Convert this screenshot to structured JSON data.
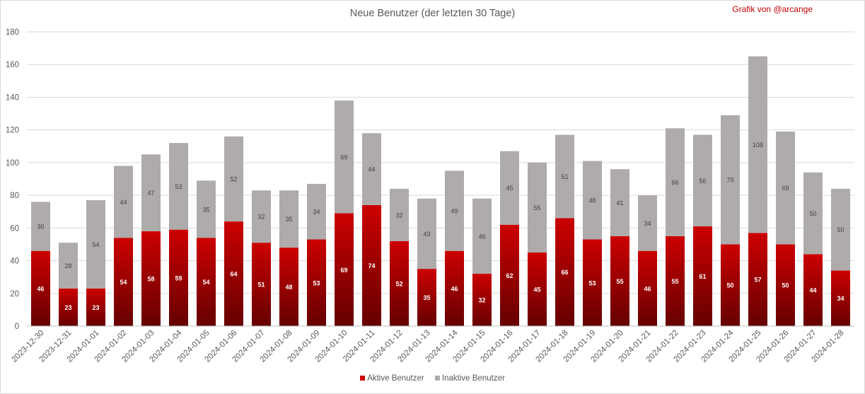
{
  "title": "Neue Benutzer (der letzten 30 Tage)",
  "credit": "Grafik von @arcange",
  "colors": {
    "active_top": "#cc0000",
    "active_bottom": "#650000",
    "inactive": "#afabab",
    "grid": "#d9d9d9",
    "text": "#595959",
    "credit": "#c00000"
  },
  "chart_data": {
    "type": "bar",
    "stacked": true,
    "title": "Neue Benutzer (der letzten 30 Tage)",
    "xlabel": "",
    "ylabel": "",
    "ylim": [
      0,
      180
    ],
    "yticks": [
      0,
      20,
      40,
      60,
      80,
      100,
      120,
      140,
      160,
      180
    ],
    "grid": true,
    "legend_position": "bottom",
    "categories": [
      "2023-12-30",
      "2023-12-31",
      "2024-01-01",
      "2024-01-02",
      "2024-01-03",
      "2024-01-04",
      "2024-01-05",
      "2024-01-06",
      "2024-01-07",
      "2024-01-08",
      "2024-01-09",
      "2024-01-10",
      "2024-01-11",
      "2024-01-12",
      "2024-01-13",
      "2024-01-14",
      "2024-01-15",
      "2024-01-16",
      "2024-01-17",
      "2024-01-18",
      "2024-01-19",
      "2024-01-20",
      "2024-01-21",
      "2024-01-22",
      "2024-01-23",
      "2024-01-24",
      "2024-01-25",
      "2024-01-26",
      "2024-01-27",
      "2024-01-28"
    ],
    "series": [
      {
        "name": "Aktive Benutzer",
        "values": [
          46,
          23,
          23,
          54,
          58,
          59,
          54,
          64,
          51,
          48,
          53,
          69,
          74,
          52,
          35,
          46,
          32,
          62,
          45,
          66,
          53,
          55,
          46,
          55,
          61,
          50,
          57,
          50,
          44,
          34
        ]
      },
      {
        "name": "Inaktive Benutzer",
        "values": [
          30,
          28,
          54,
          44,
          47,
          53,
          35,
          52,
          32,
          35,
          34,
          69,
          44,
          32,
          43,
          49,
          46,
          45,
          55,
          51,
          48,
          41,
          34,
          66,
          56,
          79,
          108,
          69,
          50,
          50
        ]
      }
    ]
  }
}
